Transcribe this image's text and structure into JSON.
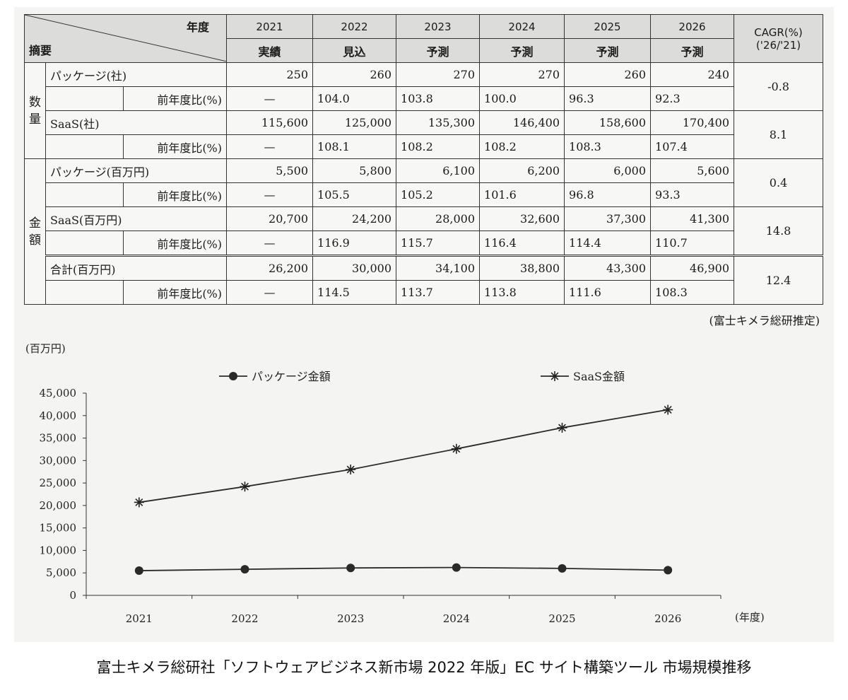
{
  "table": {
    "header": {
      "corner_top": "年度",
      "corner_bottom": "摘要",
      "years": [
        "2021",
        "2022",
        "2023",
        "2024",
        "2025",
        "2026"
      ],
      "status": [
        "実績",
        "見込",
        "予測",
        "予測",
        "予測",
        "予測"
      ],
      "cagr_label": "CAGR(%)",
      "cagr_sub": "('26/'21)"
    },
    "groups": [
      {
        "label": "数量",
        "rows": [
          {
            "label": "パッケージ(社)",
            "values": [
              "250",
              "260",
              "270",
              "270",
              "260",
              "240"
            ],
            "ratio_label": "前年度比(%)",
            "ratios": [
              "—",
              "104.0",
              "103.8",
              "100.0",
              "96.3",
              "92.3"
            ],
            "cagr": "-0.8"
          },
          {
            "label": "SaaS(社)",
            "values": [
              "115,600",
              "125,000",
              "135,300",
              "146,400",
              "158,600",
              "170,400"
            ],
            "ratio_label": "前年度比(%)",
            "ratios": [
              "—",
              "108.1",
              "108.2",
              "108.2",
              "108.3",
              "107.4"
            ],
            "cagr": "8.1"
          }
        ]
      },
      {
        "label": "金額",
        "rows": [
          {
            "label": "パッケージ(百万円)",
            "values": [
              "5,500",
              "5,800",
              "6,100",
              "6,200",
              "6,000",
              "5,600"
            ],
            "ratio_label": "前年度比(%)",
            "ratios": [
              "—",
              "105.5",
              "105.2",
              "101.6",
              "96.8",
              "93.3"
            ],
            "cagr": "0.4"
          },
          {
            "label": "SaaS(百万円)",
            "values": [
              "20,700",
              "24,200",
              "28,000",
              "32,600",
              "37,300",
              "41,300"
            ],
            "ratio_label": "前年度比(%)",
            "ratios": [
              "—",
              "116.9",
              "115.7",
              "116.4",
              "114.4",
              "110.7"
            ],
            "cagr": "14.8"
          },
          {
            "label": "合計(百万円)",
            "values": [
              "26,200",
              "30,000",
              "34,100",
              "38,800",
              "43,300",
              "46,900"
            ],
            "ratio_label": "前年度比(%)",
            "ratios": [
              "—",
              "114.5",
              "113.7",
              "113.8",
              "111.6",
              "108.3"
            ],
            "cagr": "12.4"
          }
        ]
      }
    ],
    "note": "(富士キメラ総研推定)"
  },
  "chart_data": {
    "type": "line",
    "ylabel": "(百万円)",
    "xlabel": "(年度)",
    "x": [
      "2021",
      "2022",
      "2023",
      "2024",
      "2025",
      "2026"
    ],
    "ylim": [
      0,
      45000
    ],
    "yticks": [
      "0",
      "5,000",
      "10,000",
      "15,000",
      "20,000",
      "25,000",
      "30,000",
      "35,000",
      "40,000",
      "45,000"
    ],
    "grid": false,
    "legend_position": "top",
    "series": [
      {
        "name": "パッケージ金額",
        "marker": "circle",
        "values": [
          5500,
          5800,
          6100,
          6200,
          6000,
          5600
        ]
      },
      {
        "name": "SaaS金額",
        "marker": "asterisk",
        "values": [
          20700,
          24200,
          28000,
          32600,
          37300,
          41300
        ]
      }
    ]
  },
  "source_caption": "富士キメラ総研社「ソフトウェアビジネス新市場 2022 年版」EC サイト構築ツール 市場規模推移"
}
